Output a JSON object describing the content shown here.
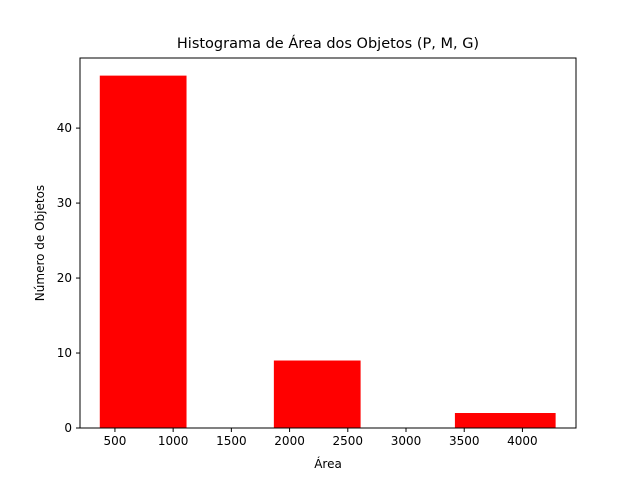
{
  "chart_data": {
    "type": "bar",
    "title": "Histograma de Área dos Objetos (P, M, G)",
    "xlabel": "Área",
    "ylabel": "Número de Objetos",
    "bars": [
      {
        "x_start": 370,
        "x_end": 1115,
        "value": 47
      },
      {
        "x_start": 1865,
        "x_end": 2610,
        "value": 9
      },
      {
        "x_start": 3420,
        "x_end": 4285,
        "value": 2
      }
    ],
    "xlim": [
      200,
      4460
    ],
    "ylim": [
      0,
      49.35
    ],
    "x_ticks": [
      500,
      1000,
      1500,
      2000,
      2500,
      3000,
      3500,
      4000
    ],
    "y_ticks": [
      0,
      10,
      20,
      30,
      40
    ],
    "bar_color": "#ff0000",
    "grid": false,
    "legend": "none"
  }
}
